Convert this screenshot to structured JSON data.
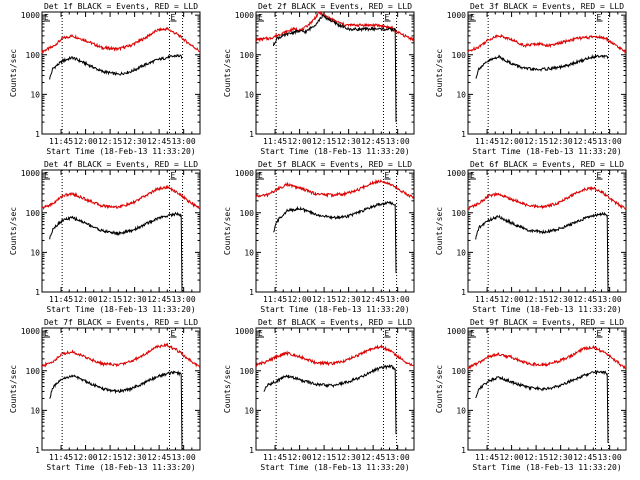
{
  "colors": {
    "events": "#000000",
    "lld": "#dd0000",
    "frame": "#000000",
    "background": "#ffffff"
  },
  "chart_data": [
    {
      "type": "line",
      "title": "Det 1f BLACK = Events, RED = LLD",
      "xlabel": "Start Time (18-Feb-13 11:33:20)",
      "ylabel": "Counts/sec",
      "x_ticks": [
        "11:45",
        "12:00",
        "12:15",
        "12:30",
        "12:45",
        "13:00"
      ],
      "y_ticks": [
        "1",
        "10",
        "100",
        "1000"
      ],
      "xlim": [
        "11:33:20",
        "13:10:00"
      ],
      "ylim": [
        1,
        1200
      ],
      "y_scale": "log",
      "markers": [
        {
          "time": "11:45:40",
          "label": ""
        },
        {
          "time": "12:51:20",
          "label": "E"
        },
        {
          "time": "12:59:20",
          "label": ""
        }
      ],
      "legend_marker_left": "E",
      "series": [
        {
          "name": "LLD",
          "color": "red",
          "x": [
            "11:33:20",
            "11:40",
            "11:46",
            "11:52",
            "12:00",
            "12:10",
            "12:20",
            "12:28",
            "12:36",
            "12:44",
            "12:50",
            "12:56",
            "13:02",
            "13:08",
            "13:10"
          ],
          "values": [
            120,
            160,
            260,
            300,
            230,
            150,
            140,
            175,
            260,
            420,
            450,
            330,
            210,
            140,
            120
          ]
        },
        {
          "name": "Events",
          "color": "black",
          "x": [
            "11:38",
            "11:40",
            "11:46",
            "11:52",
            "12:00",
            "12:10",
            "12:20",
            "12:28",
            "12:36",
            "12:44",
            "12:50",
            "12:56",
            "12:58:30",
            "12:59:00"
          ],
          "values": [
            25,
            45,
            70,
            85,
            60,
            38,
            32,
            38,
            55,
            75,
            85,
            95,
            90,
            88
          ]
        }
      ]
    },
    {
      "type": "line",
      "title": "Det 2f BLACK = Events, RED = LLD",
      "xlabel": "Start Time (18-Feb-13 11:33:20)",
      "ylabel": "Counts/sec",
      "x_ticks": [
        "11:45",
        "12:00",
        "12:15",
        "12:30",
        "12:45",
        "13:00"
      ],
      "y_ticks": [
        "1",
        "10",
        "100",
        "1000"
      ],
      "xlim": [
        "11:33:20",
        "13:10:00"
      ],
      "ylim": [
        1,
        1200
      ],
      "y_scale": "log",
      "markers": [
        {
          "time": "11:45:40",
          "label": ""
        },
        {
          "time": "12:51:20",
          "label": "E"
        },
        {
          "time": "12:59:20",
          "label": ""
        }
      ],
      "legend_marker_left": "E",
      "series": [
        {
          "name": "LLD",
          "color": "red",
          "x": [
            "11:33:20",
            "11:42",
            "11:48",
            "11:56",
            "12:02",
            "12:08",
            "12:12",
            "12:16",
            "12:22",
            "12:28",
            "12:36",
            "12:44",
            "12:50",
            "12:56",
            "13:02",
            "13:10"
          ],
          "values": [
            240,
            260,
            330,
            440,
            430,
            720,
            1150,
            950,
            700,
            560,
            560,
            560,
            540,
            480,
            330,
            240
          ]
        },
        {
          "name": "Events",
          "color": "black",
          "x": [
            "11:44",
            "11:46",
            "11:52",
            "11:58",
            "12:04",
            "12:10",
            "12:14",
            "12:18",
            "12:24",
            "12:30",
            "12:38",
            "12:46",
            "12:54",
            "12:58:30",
            "12:59:00"
          ],
          "values": [
            170,
            260,
            320,
            390,
            380,
            600,
            950,
            780,
            560,
            440,
            440,
            450,
            440,
            420,
            2
          ]
        }
      ]
    },
    {
      "type": "line",
      "title": "Det 3f BLACK = Events, RED = LLD",
      "xlabel": "Start Time (18-Feb-13 11:33:20)",
      "ylabel": "Counts/sec",
      "x_ticks": [
        "11:45",
        "12:00",
        "12:15",
        "12:30",
        "12:45",
        "13:00"
      ],
      "y_ticks": [
        "1",
        "10",
        "100",
        "1000"
      ],
      "xlim": [
        "11:33:20",
        "13:10:00"
      ],
      "ylim": [
        1,
        1200
      ],
      "y_scale": "log",
      "markers": [
        {
          "time": "11:45:40",
          "label": ""
        },
        {
          "time": "12:51:20",
          "label": "E"
        },
        {
          "time": "12:59:20",
          "label": ""
        }
      ],
      "legend_marker_left": "E",
      "series": [
        {
          "name": "LLD",
          "color": "red",
          "x": [
            "11:33:20",
            "11:40",
            "11:46",
            "11:52",
            "12:00",
            "12:08",
            "12:16",
            "12:24",
            "12:32",
            "12:40",
            "12:46",
            "12:52",
            "12:58",
            "13:04",
            "13:10"
          ],
          "values": [
            120,
            160,
            240,
            310,
            240,
            170,
            190,
            170,
            210,
            260,
            270,
            290,
            250,
            170,
            120
          ]
        },
        {
          "name": "Events",
          "color": "black",
          "x": [
            "11:38",
            "11:40",
            "11:46",
            "11:52",
            "12:00",
            "12:08",
            "12:16",
            "12:24",
            "12:32",
            "12:40",
            "12:48",
            "12:54",
            "12:58:30",
            "12:59:00"
          ],
          "values": [
            25,
            45,
            70,
            90,
            60,
            45,
            42,
            45,
            50,
            65,
            85,
            95,
            90,
            90
          ]
        }
      ]
    },
    {
      "type": "line",
      "title": "Det 4f BLACK = Events, RED = LLD",
      "xlabel": "Start Time (18-Feb-13 11:33:20)",
      "ylabel": "Counts/sec",
      "x_ticks": [
        "11:45",
        "12:00",
        "12:15",
        "12:30",
        "12:45",
        "13:00"
      ],
      "y_ticks": [
        "1",
        "10",
        "100",
        "1000"
      ],
      "xlim": [
        "11:33:20",
        "13:10:00"
      ],
      "ylim": [
        1,
        1200
      ],
      "y_scale": "log",
      "markers": [
        {
          "time": "11:45:40",
          "label": ""
        },
        {
          "time": "12:51:20",
          "label": "E"
        },
        {
          "time": "12:59:20",
          "label": ""
        }
      ],
      "legend_marker_left": "E",
      "series": [
        {
          "name": "LLD",
          "color": "red",
          "x": [
            "11:33:20",
            "11:40",
            "11:46",
            "11:52",
            "12:00",
            "12:10",
            "12:20",
            "12:28",
            "12:36",
            "12:44",
            "12:50",
            "12:56",
            "13:02",
            "13:08",
            "13:10"
          ],
          "values": [
            130,
            170,
            270,
            300,
            220,
            150,
            140,
            170,
            260,
            400,
            440,
            330,
            210,
            140,
            130
          ]
        },
        {
          "name": "Events",
          "color": "black",
          "x": [
            "11:38",
            "11:40",
            "11:46",
            "11:52",
            "12:00",
            "12:10",
            "12:20",
            "12:28",
            "12:36",
            "12:44",
            "12:50",
            "12:56",
            "12:58:30",
            "12:59:00"
          ],
          "values": [
            22,
            40,
            65,
            75,
            55,
            35,
            30,
            35,
            50,
            72,
            85,
            95,
            85,
            1
          ]
        }
      ]
    },
    {
      "type": "line",
      "title": "Det 5f BLACK = Events, RED = LLD",
      "xlabel": "Start Time (18-Feb-13 11:33:20)",
      "ylabel": "Counts/sec",
      "x_ticks": [
        "11:45",
        "12:00",
        "12:15",
        "12:30",
        "12:45",
        "13:00"
      ],
      "y_ticks": [
        "1",
        "10",
        "100",
        "1000"
      ],
      "xlim": [
        "11:33:20",
        "13:10:00"
      ],
      "ylim": [
        1,
        1200
      ],
      "y_scale": "log",
      "markers": [
        {
          "time": "11:45:40",
          "label": ""
        },
        {
          "time": "12:51:20",
          "label": "E"
        },
        {
          "time": "12:59:20",
          "label": ""
        }
      ],
      "legend_marker_left": "E",
      "series": [
        {
          "name": "LLD",
          "color": "red",
          "x": [
            "11:33:20",
            "11:40",
            "11:46",
            "11:52",
            "12:00",
            "12:10",
            "12:20",
            "12:28",
            "12:36",
            "12:44",
            "12:50",
            "12:56",
            "13:02",
            "13:08",
            "13:10"
          ],
          "values": [
            260,
            280,
            380,
            520,
            420,
            300,
            280,
            300,
            380,
            560,
            650,
            520,
            360,
            260,
            250
          ]
        },
        {
          "name": "Events",
          "color": "black",
          "x": [
            "11:44",
            "11:46",
            "11:52",
            "12:00",
            "12:10",
            "12:20",
            "12:28",
            "12:36",
            "12:44",
            "12:50",
            "12:56",
            "12:58:30",
            "12:59:00"
          ],
          "values": [
            30,
            60,
            110,
            130,
            90,
            75,
            80,
            100,
            140,
            170,
            180,
            160,
            3
          ]
        }
      ]
    },
    {
      "type": "line",
      "title": "Det 6f BLACK = Events, RED = LLD",
      "xlabel": "Start Time (18-Feb-13 11:33:20)",
      "ylabel": "Counts/sec",
      "x_ticks": [
        "11:45",
        "12:00",
        "12:15",
        "12:30",
        "12:45",
        "13:00"
      ],
      "y_ticks": [
        "1",
        "10",
        "100",
        "1000"
      ],
      "xlim": [
        "11:33:20",
        "13:10:00"
      ],
      "ylim": [
        1,
        1200
      ],
      "y_scale": "log",
      "markers": [
        {
          "time": "11:45:40",
          "label": ""
        },
        {
          "time": "12:51:20",
          "label": "E"
        },
        {
          "time": "12:59:20",
          "label": ""
        }
      ],
      "legend_marker_left": "E",
      "series": [
        {
          "name": "LLD",
          "color": "red",
          "x": [
            "11:33:20",
            "11:40",
            "11:46",
            "11:52",
            "12:00",
            "12:10",
            "12:20",
            "12:28",
            "12:36",
            "12:44",
            "12:50",
            "12:56",
            "13:02",
            "13:08",
            "13:10"
          ],
          "values": [
            130,
            170,
            270,
            290,
            220,
            150,
            140,
            175,
            260,
            390,
            420,
            320,
            200,
            140,
            130
          ]
        },
        {
          "name": "Events",
          "color": "black",
          "x": [
            "11:38",
            "11:40",
            "11:46",
            "11:52",
            "12:00",
            "12:10",
            "12:20",
            "12:28",
            "12:36",
            "12:44",
            "12:50",
            "12:56",
            "12:58:30",
            "12:59:00"
          ],
          "values": [
            22,
            42,
            65,
            80,
            55,
            36,
            32,
            38,
            50,
            70,
            85,
            95,
            85,
            1
          ]
        }
      ]
    },
    {
      "type": "line",
      "title": "Det 7f BLACK = Events, RED = LLD",
      "xlabel": "Start Time (18-Feb-13 11:33:20)",
      "ylabel": "Counts/sec",
      "x_ticks": [
        "11:45",
        "12:00",
        "12:15",
        "12:30",
        "12:45",
        "13:00"
      ],
      "y_ticks": [
        "1",
        "10",
        "100",
        "1000"
      ],
      "xlim": [
        "11:33:20",
        "13:10:00"
      ],
      "ylim": [
        1,
        1200
      ],
      "y_scale": "log",
      "markers": [
        {
          "time": "11:45:40",
          "label": ""
        },
        {
          "time": "12:51:20",
          "label": "E"
        },
        {
          "time": "12:59:20",
          "label": ""
        }
      ],
      "legend_marker_left": "E",
      "series": [
        {
          "name": "LLD",
          "color": "red",
          "x": [
            "11:33:20",
            "11:40",
            "11:46",
            "11:52",
            "12:00",
            "12:10",
            "12:20",
            "12:28",
            "12:36",
            "12:44",
            "12:50",
            "12:56",
            "13:02",
            "13:08",
            "13:10"
          ],
          "values": [
            130,
            170,
            270,
            300,
            220,
            150,
            140,
            175,
            260,
            410,
            440,
            330,
            210,
            140,
            130
          ]
        },
        {
          "name": "Events",
          "color": "black",
          "x": [
            "11:38",
            "11:40",
            "11:46",
            "11:52",
            "12:00",
            "12:10",
            "12:20",
            "12:28",
            "12:36",
            "12:44",
            "12:50",
            "12:56",
            "12:58:30",
            "12:59:00"
          ],
          "values": [
            20,
            38,
            62,
            75,
            55,
            35,
            30,
            35,
            50,
            72,
            85,
            90,
            80,
            1
          ]
        }
      ]
    },
    {
      "type": "line",
      "title": "Det 8f BLACK = Events, RED = LLD",
      "xlabel": "Start Time (18-Feb-13 11:33:20)",
      "ylabel": "Counts/sec",
      "x_ticks": [
        "11:45",
        "12:00",
        "12:15",
        "12:30",
        "12:45",
        "13:00"
      ],
      "y_ticks": [
        "1",
        "10",
        "100",
        "1000"
      ],
      "xlim": [
        "11:33:20",
        "13:10:00"
      ],
      "ylim": [
        1,
        1200
      ],
      "y_scale": "log",
      "markers": [
        {
          "time": "11:45:40",
          "label": ""
        },
        {
          "time": "12:51:20",
          "label": "E"
        },
        {
          "time": "12:59:20",
          "label": ""
        }
      ],
      "legend_marker_left": "E",
      "series": [
        {
          "name": "LLD",
          "color": "red",
          "x": [
            "11:33:20",
            "11:40",
            "11:46",
            "11:52",
            "12:00",
            "12:10",
            "12:20",
            "12:28",
            "12:36",
            "12:44",
            "12:50",
            "12:56",
            "13:02",
            "13:08",
            "13:10"
          ],
          "values": [
            140,
            170,
            230,
            280,
            230,
            160,
            150,
            180,
            250,
            360,
            410,
            310,
            200,
            140,
            130
          ]
        },
        {
          "name": "Events",
          "color": "black",
          "x": [
            "11:38",
            "11:40",
            "11:46",
            "11:52",
            "12:00",
            "12:10",
            "12:20",
            "12:28",
            "12:36",
            "12:44",
            "12:50",
            "12:56",
            "12:58:30",
            "12:59:00"
          ],
          "values": [
            30,
            42,
            55,
            75,
            60,
            45,
            42,
            50,
            65,
            95,
            120,
            130,
            110,
            2.5
          ]
        }
      ]
    },
    {
      "type": "line",
      "title": "Det 9f BLACK = Events, RED = LLD",
      "xlabel": "Start Time (18-Feb-13 11:33:20)",
      "ylabel": "Counts/sec",
      "x_ticks": [
        "11:45",
        "12:00",
        "12:15",
        "12:30",
        "12:45",
        "13:00"
      ],
      "y_ticks": [
        "1",
        "10",
        "100",
        "1000"
      ],
      "xlim": [
        "11:33:20",
        "13:10:00"
      ],
      "ylim": [
        1,
        1200
      ],
      "y_scale": "log",
      "markers": [
        {
          "time": "11:45:40",
          "label": ""
        },
        {
          "time": "12:51:20",
          "label": "E"
        },
        {
          "time": "12:59:20",
          "label": ""
        }
      ],
      "legend_marker_left": "E",
      "series": [
        {
          "name": "LLD",
          "color": "red",
          "x": [
            "11:33:20",
            "11:40",
            "11:46",
            "11:52",
            "12:00",
            "12:10",
            "12:20",
            "12:28",
            "12:36",
            "12:44",
            "12:50",
            "12:56",
            "13:02",
            "13:08",
            "13:10"
          ],
          "values": [
            120,
            160,
            230,
            260,
            220,
            150,
            140,
            170,
            230,
            360,
            400,
            300,
            200,
            130,
            120
          ]
        },
        {
          "name": "Events",
          "color": "black",
          "x": [
            "11:38",
            "11:40",
            "11:46",
            "11:52",
            "12:00",
            "12:10",
            "12:20",
            "12:28",
            "12:36",
            "12:44",
            "12:50",
            "12:56",
            "12:58:30",
            "12:59:00"
          ],
          "values": [
            20,
            35,
            55,
            70,
            52,
            38,
            34,
            40,
            55,
            75,
            90,
            95,
            85,
            1.5
          ]
        }
      ]
    }
  ]
}
